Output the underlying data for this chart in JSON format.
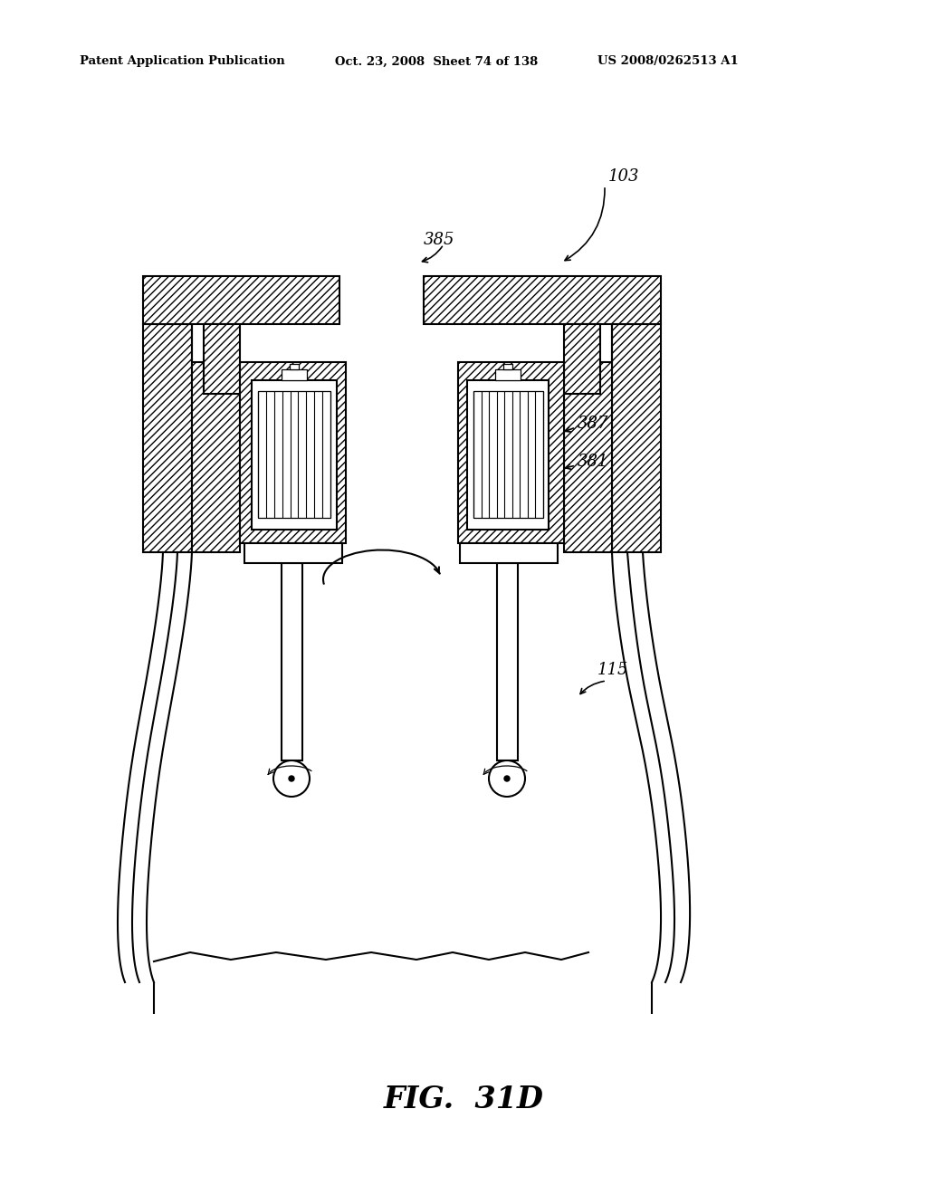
{
  "title_left": "Patent Application Publication",
  "title_center": "Oct. 23, 2008  Sheet 74 of 138",
  "title_right": "US 2008/0262513 A1",
  "fig_label": "FIG.  31D",
  "label_103": "103",
  "label_385": "385",
  "label_387": "387",
  "label_381": "381",
  "label_115": "115",
  "bg_color": "#ffffff",
  "line_color": "#000000"
}
